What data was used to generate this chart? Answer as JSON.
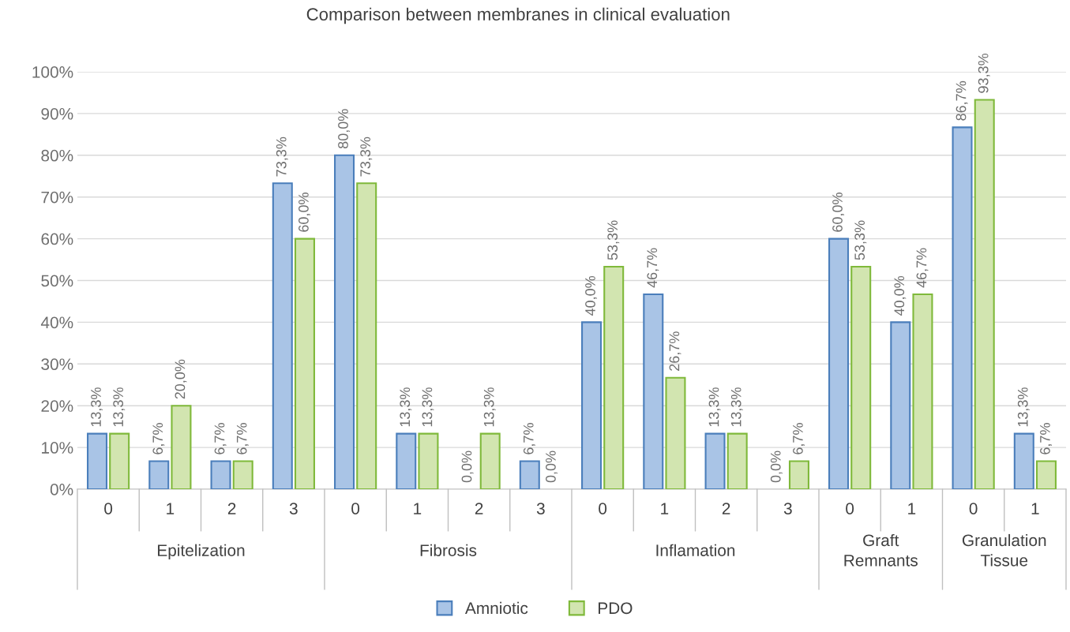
{
  "chart_data": {
    "type": "bar",
    "title": "Comparison between membranes in clinical evaluation",
    "categories": [
      "0",
      "1",
      "2",
      "3",
      "0",
      "1",
      "2",
      "3",
      "0",
      "1",
      "2",
      "3",
      "0",
      "1",
      "0",
      "1"
    ],
    "series": [
      {
        "name": "Amniotic",
        "color": "#a9c4e6",
        "values": [
          13.3,
          6.7,
          6.7,
          73.3,
          80.0,
          13.3,
          0.0,
          6.7,
          40.0,
          46.7,
          13.3,
          0.0,
          60.0,
          40.0,
          86.7,
          13.3
        ],
        "value_labels": [
          "13,3%",
          "6,7%",
          "6,7%",
          "73,3%",
          "80,0%",
          "13,3%",
          "0,0%",
          "6,7%",
          "40,0%",
          "46,7%",
          "13,3%",
          "0,0%",
          "60,0%",
          "40,0%",
          "86,7%",
          "13,3%"
        ]
      },
      {
        "name": "PDO",
        "color": "#d2e5b0",
        "values": [
          13.3,
          20.0,
          6.7,
          60.0,
          73.3,
          13.3,
          13.3,
          0.0,
          53.3,
          26.7,
          13.3,
          6.7,
          53.3,
          46.7,
          93.3,
          6.7
        ],
        "value_labels": [
          "13,3%",
          "20,0%",
          "6,7%",
          "60,0%",
          "73,3%",
          "13,3%",
          "13,3%",
          "0,0%",
          "53,3%",
          "26,7%",
          "13,3%",
          "6,7%",
          "53,3%",
          "46,7%",
          "93,3%",
          "6,7%"
        ]
      }
    ],
    "annotations": [
      "Epitelization",
      "Fibrosis",
      "Inflamation",
      "Graft\nRemnants",
      "Granulation\nTissue"
    ],
    "ylim": [
      0,
      100
    ],
    "yticks": [
      {
        "value": 0,
        "label": "0%"
      },
      {
        "value": 10,
        "label": "10%"
      },
      {
        "value": 20,
        "label": "20%"
      },
      {
        "value": 30,
        "label": "30%"
      },
      {
        "value": 40,
        "label": "40%"
      },
      {
        "value": 50,
        "label": "50%"
      },
      {
        "value": 60,
        "label": "60%"
      },
      {
        "value": 70,
        "label": "70%"
      },
      {
        "value": 80,
        "label": "80%"
      },
      {
        "value": 90,
        "label": "90%"
      },
      {
        "value": 100,
        "label": "100%"
      }
    ],
    "grid": "y",
    "legend": "bottom"
  }
}
